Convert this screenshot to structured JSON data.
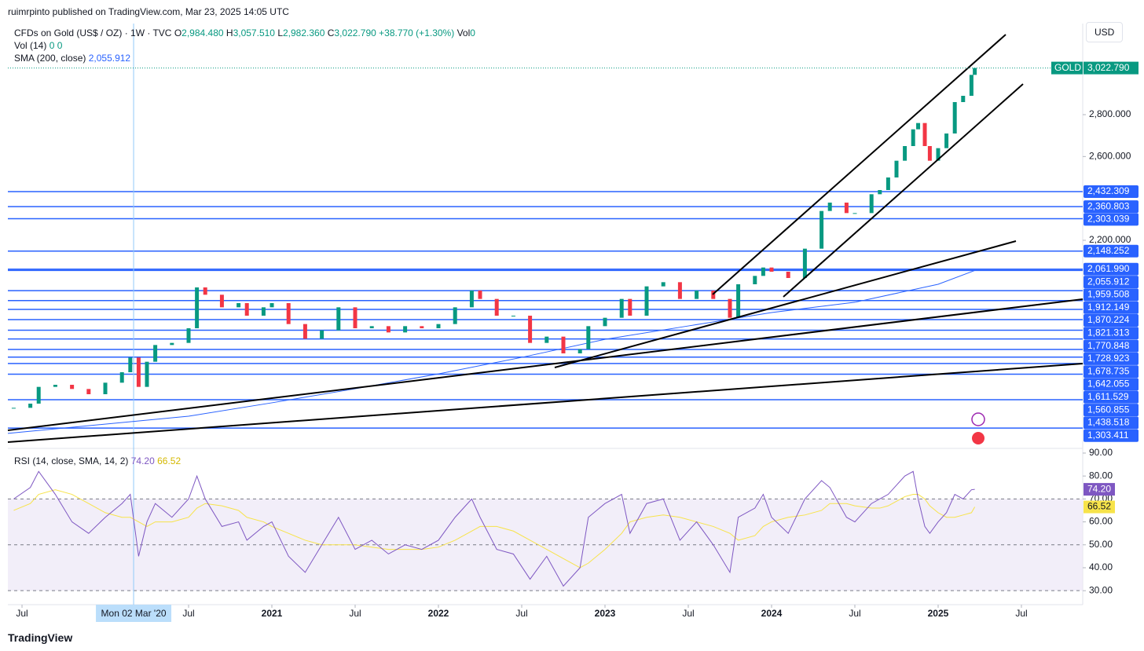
{
  "header": {
    "publisher": "ruimrpinto published on TradingView.com, Mar 23, 2025 14:05 UTC"
  },
  "legend": {
    "symbol": "CFDs on Gold (US$ / OZ) · 1W · TVC",
    "ohlc": [
      {
        "key": "O",
        "value": "2,984.480"
      },
      {
        "key": "H",
        "value": "3,057.510"
      },
      {
        "key": "L",
        "value": "2,982.360"
      },
      {
        "key": "C",
        "value": "3,022.790"
      }
    ],
    "change": "+38.770 (+1.30%)",
    "vol_key": "Vol",
    "vol_value": "0",
    "vol_study": "Vol (14)",
    "vol_values": [
      "0",
      "0"
    ],
    "sma_study": "SMA (200, close)",
    "sma_value": "2,055.912"
  },
  "currency": "USD",
  "footer": {
    "brand": "TradingView"
  },
  "chart_data": {
    "type": "candlestick",
    "colors": {
      "up": "#089981",
      "down": "#f23645",
      "level": "#2962ff",
      "sma": "#2962ff"
    },
    "x": [
      2019.45,
      2019.55,
      2019.6,
      2019.7,
      2019.8,
      2019.9,
      2020.0,
      2020.1,
      2020.15,
      2020.2,
      2020.25,
      2020.3,
      2020.4,
      2020.5,
      2020.55,
      2020.6,
      2020.7,
      2020.8,
      2020.85,
      2020.95,
      2021.0,
      2021.1,
      2021.2,
      2021.3,
      2021.4,
      2021.5,
      2021.6,
      2021.7,
      2021.8,
      2021.9,
      2022.0,
      2022.1,
      2022.2,
      2022.25,
      2022.35,
      2022.45,
      2022.55,
      2022.65,
      2022.75,
      2022.85,
      2022.9,
      2023.0,
      2023.1,
      2023.15,
      2023.25,
      2023.35,
      2023.45,
      2023.55,
      2023.65,
      2023.75,
      2023.8,
      2023.9,
      2023.95,
      2024.0,
      2024.1,
      2024.2,
      2024.3,
      2024.35,
      2024.45,
      2024.5,
      2024.6,
      2024.65,
      2024.7,
      2024.75,
      2024.8,
      2024.85,
      2024.88,
      2024.92,
      2024.95,
      2025.0,
      2025.05,
      2025.1,
      2025.15,
      2025.2,
      2025.22
    ],
    "close": [
      1400,
      1420,
      1500,
      1510,
      1490,
      1465,
      1520,
      1570,
      1640,
      1500,
      1620,
      1700,
      1710,
      1780,
      1975,
      1940,
      1880,
      1900,
      1840,
      1880,
      1900,
      1800,
      1730,
      1770,
      1880,
      1780,
      1790,
      1760,
      1790,
      1780,
      1800,
      1880,
      1960,
      1920,
      1840,
      1840,
      1710,
      1740,
      1660,
      1680,
      1790,
      1830,
      1920,
      1840,
      1980,
      2000,
      1920,
      1960,
      1920,
      1830,
      1990,
      2030,
      2070,
      2050,
      2020,
      2160,
      2340,
      2380,
      2330,
      2330,
      2420,
      2440,
      2500,
      2580,
      2650,
      2730,
      2760,
      2650,
      2580,
      2640,
      2710,
      2860,
      2890,
      2990,
      3022.79
    ],
    "xlim": [
      2019.415,
      2025.868
    ],
    "ylim": [
      1210,
      3235
    ],
    "xticks": [
      {
        "value": 2019.5,
        "label": "Jul"
      },
      {
        "value": 2020.5,
        "label": "Jul"
      },
      {
        "value": 2021,
        "label": "2021"
      },
      {
        "value": 2021.5,
        "label": "Jul"
      },
      {
        "value": 2022,
        "label": "2022"
      },
      {
        "value": 2022.5,
        "label": "Jul"
      },
      {
        "value": 2023,
        "label": "2023"
      },
      {
        "value": 2023.5,
        "label": "Jul"
      },
      {
        "value": 2024,
        "label": "2024"
      },
      {
        "value": 2024.5,
        "label": "Jul"
      },
      {
        "value": 2025,
        "label": "2025"
      },
      {
        "value": 2025.5,
        "label": "Jul"
      }
    ],
    "yticks": [
      {
        "value": 2800,
        "label": "2,800.000"
      },
      {
        "value": 2600,
        "label": "2,600.000"
      },
      {
        "value": 2200,
        "label": "2,200.000"
      }
    ],
    "levels": [
      {
        "value": 2432.309,
        "label": "2,432.309"
      },
      {
        "value": 2360.803,
        "label": "2,360.803"
      },
      {
        "value": 2303.039,
        "label": "2,303.039"
      },
      {
        "value": 2148.252,
        "label": "2,148.252"
      },
      {
        "value": 2061.99,
        "label": "2,061.990"
      },
      {
        "value": 2055.912,
        "label": "2,055.912"
      },
      {
        "value": 1959.508,
        "label": "1,959.508"
      },
      {
        "value": 1912.149,
        "label": "1,912.149"
      },
      {
        "value": 1870.224,
        "label": "1,870.224"
      },
      {
        "value": 1821.313,
        "label": "1,821.313"
      },
      {
        "value": 1770.848,
        "label": "1,770.848"
      },
      {
        "value": 1728.923,
        "label": "1,728.923"
      },
      {
        "value": 1678.735,
        "label": "1,678.735"
      },
      {
        "value": 1642.055,
        "label": "1,642.055"
      },
      {
        "value": 1611.529,
        "label": "1,611.529"
      },
      {
        "value": 1560.855,
        "label": "1,560.855"
      },
      {
        "value": 1438.518,
        "label": "1,438.518"
      },
      {
        "value": 1303.411,
        "label": "1,303.411"
      }
    ],
    "last": {
      "symbol": "GOLD",
      "value": 3022.79,
      "label": "3,022.790"
    },
    "crosshair": {
      "value": 2020.17,
      "label": "Mon 02 Mar '20"
    },
    "sma": {
      "x": [
        2019.415,
        2020.5,
        2021.0,
        2021.5,
        2022.0,
        2022.5,
        2023.0,
        2023.5,
        2024.0,
        2024.5,
        2025.0,
        2025.22
      ],
      "values": [
        1278,
        1360,
        1424,
        1491,
        1562,
        1641,
        1727,
        1791,
        1855,
        1904,
        1990,
        2055.912
      ]
    },
    "rsi": {
      "title": "RSI (14, close, SMA, 14, 2)",
      "color": "#7e57c2",
      "sma_color": "#f7e34a",
      "values": [
        70,
        75,
        82,
        72,
        60,
        55,
        62,
        68,
        72,
        45,
        60,
        68,
        62,
        70,
        80,
        70,
        58,
        60,
        52,
        58,
        60,
        45,
        38,
        50,
        62,
        48,
        52,
        46,
        50,
        48,
        52,
        62,
        70,
        62,
        48,
        46,
        35,
        45,
        32,
        40,
        62,
        68,
        72,
        55,
        68,
        70,
        52,
        60,
        50,
        38,
        62,
        66,
        72,
        62,
        55,
        70,
        78,
        75,
        62,
        60,
        68,
        70,
        72,
        76,
        80,
        82,
        70,
        58,
        55,
        60,
        64,
        72,
        70,
        74,
        74.2
      ],
      "sma": [
        65,
        68,
        72,
        74,
        72,
        68,
        64,
        62,
        62,
        60,
        58,
        60,
        60,
        62,
        66,
        68,
        67,
        65,
        62,
        60,
        58,
        55,
        52,
        50,
        50,
        50,
        49,
        48,
        48,
        48,
        49,
        52,
        56,
        58,
        58,
        56,
        52,
        48,
        44,
        40,
        42,
        48,
        55,
        60,
        62,
        63,
        62,
        60,
        58,
        55,
        52,
        54,
        58,
        60,
        62,
        63,
        65,
        68,
        68,
        67,
        66,
        66,
        67,
        69,
        71,
        72,
        72,
        70,
        67,
        64,
        62,
        62,
        63,
        64,
        66.52
      ],
      "ylim": [
        23.9,
        91.7
      ],
      "yticks": [
        {
          "value": 90,
          "label": "90.00"
        },
        {
          "value": 80,
          "label": "80.00"
        },
        {
          "value": 70,
          "label": "70.00"
        },
        {
          "value": 60,
          "label": "60.00"
        },
        {
          "value": 50,
          "label": "50.00"
        },
        {
          "value": 40,
          "label": "40.00"
        },
        {
          "value": 30,
          "label": "30.00"
        }
      ],
      "band": [
        30,
        70
      ],
      "midline": 50,
      "last": {
        "value": 74.2,
        "label": "74.20"
      },
      "sma_last": {
        "value": 66.52,
        "label": "66.52"
      }
    }
  }
}
